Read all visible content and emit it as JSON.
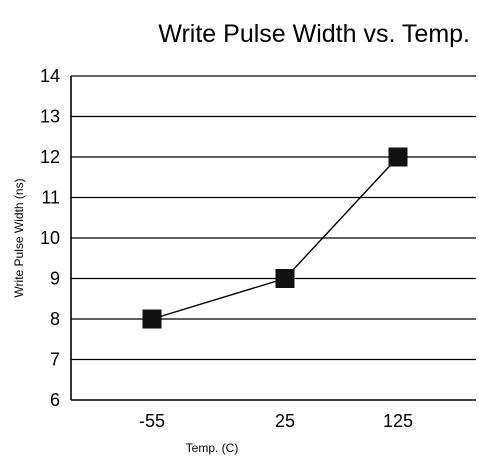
{
  "chart_data": {
    "type": "line",
    "title": "Write Pulse Width vs. Temp.",
    "xlabel": "Temp. (C)",
    "ylabel": "Write Pulse Width (ns)",
    "categories": [
      "-55",
      "25",
      "125"
    ],
    "series": [
      {
        "values": [
          8,
          9,
          12
        ],
        "color": "#111111",
        "marker": "square"
      }
    ],
    "ylim": [
      6,
      14
    ],
    "y_ticks": [
      6,
      7,
      8,
      9,
      10,
      11,
      12,
      13,
      14
    ],
    "grid": true,
    "legend": "none"
  }
}
